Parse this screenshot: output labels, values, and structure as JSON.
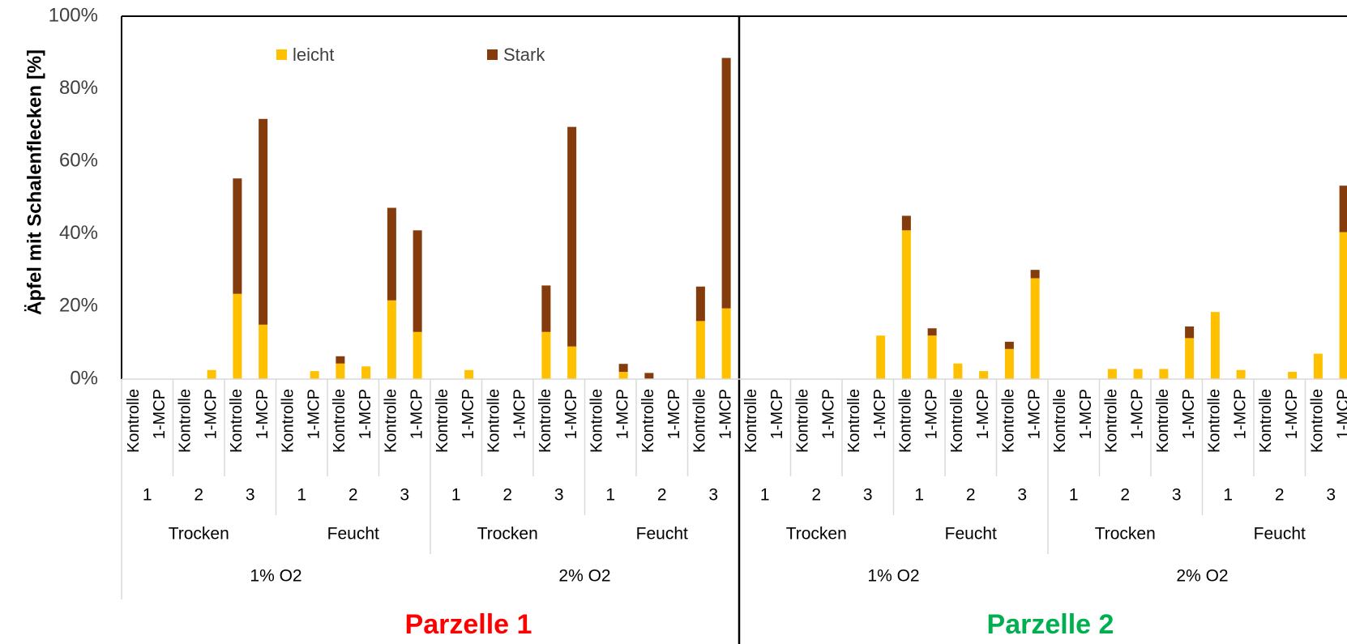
{
  "chart_data": {
    "type": "bar",
    "stacked": true,
    "ylabel": "Äpfel mit Schalenflecken [%]",
    "ylim": [
      0,
      100
    ],
    "yticks": [
      "0%",
      "20%",
      "40%",
      "60%",
      "80%",
      "100%"
    ],
    "legend": {
      "placement": "top-left",
      "entries": [
        {
          "name": "leicht",
          "color": "#FFC000"
        },
        {
          "name": "Stark",
          "color": "#843C0C"
        }
      ]
    },
    "panels": [
      {
        "title": "Parzelle 1",
        "title_color": "#FF0000",
        "categories": [
          "Kontrolle",
          "1-MCP",
          "Kontrolle",
          "1-MCP",
          "Kontrolle",
          "1-MCP",
          "Kontrolle",
          "1-MCP",
          "Kontrolle",
          "1-MCP",
          "Kontrolle",
          "1-MCP",
          "Kontrolle",
          "1-MCP",
          "Kontrolle",
          "1-MCP",
          "Kontrolle",
          "1-MCP",
          "Kontrolle",
          "1-MCP",
          "Kontrolle",
          "1-MCP",
          "Kontrolle",
          "1-MCP"
        ],
        "level2": [
          "1",
          "2",
          "3",
          "1",
          "2",
          "3",
          "1",
          "2",
          "3",
          "1",
          "2",
          "3"
        ],
        "level3": [
          "Trocken",
          "Feucht",
          "Trocken",
          "Feucht"
        ],
        "level4": [
          "1% O2",
          "2% O2"
        ],
        "series": [
          {
            "name": "leicht",
            "values": [
              0,
              0,
              0,
              2.5,
              23.5,
              15,
              0,
              2.2,
              4.3,
              3.5,
              21.7,
              13,
              0,
              2.5,
              0,
              0,
              13,
              9,
              0,
              2,
              0,
              0,
              16,
              19.5
            ]
          },
          {
            "name": "Stark",
            "values": [
              0,
              0,
              0,
              0,
              31.8,
              56.7,
              0,
              0,
              2,
              0,
              25.5,
              28,
              0,
              0,
              0,
              0,
              12.8,
              60.5,
              0,
              2.2,
              1.7,
              0,
              9.5,
              69
            ]
          }
        ]
      },
      {
        "title": "Parzelle 2",
        "title_color": "#00B050",
        "categories": [
          "Kontrolle",
          "1-MCP",
          "Kontrolle",
          "1-MCP",
          "Kontrolle",
          "1-MCP",
          "Kontrolle",
          "1-MCP",
          "Kontrolle",
          "1-MCP",
          "Kontrolle",
          "1-MCP",
          "Kontrolle",
          "1-MCP",
          "Kontrolle",
          "1-MCP",
          "Kontrolle",
          "1-MCP",
          "Kontrolle",
          "1-MCP",
          "Kontrolle",
          "1-MCP",
          "Kontrolle",
          "1-MCP"
        ],
        "level2": [
          "1",
          "2",
          "3",
          "1",
          "2",
          "3",
          "1",
          "2",
          "3",
          "1",
          "2",
          "3"
        ],
        "level3": [
          "Trocken",
          "Feucht",
          "Trocken",
          "Feucht"
        ],
        "level4": [
          "1% O2",
          "2% O2"
        ],
        "series": [
          {
            "name": "leicht",
            "values": [
              0,
              0,
              0,
              0,
              0,
              12,
              41,
              12,
              4.3,
              2.2,
              8.3,
              27.8,
              0,
              0,
              2.8,
              2.8,
              2.8,
              11.3,
              18.5,
              2.5,
              0,
              2,
              7,
              40.5
            ]
          },
          {
            "name": "Stark",
            "values": [
              0,
              0,
              0,
              0,
              0,
              0,
              4,
              2,
              0,
              0,
              2,
              2.3,
              0,
              0,
              0,
              0,
              0,
              3.2,
              0,
              0,
              0,
              0,
              0,
              12.8
            ]
          }
        ]
      }
    ]
  }
}
